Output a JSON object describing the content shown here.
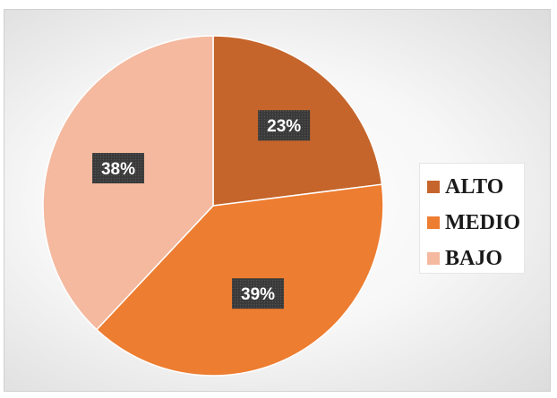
{
  "chart_data": {
    "type": "pie",
    "slices": [
      {
        "label": "ALTO",
        "value": 23,
        "display": "23%",
        "color": "#c5652b"
      },
      {
        "label": "MEDIO",
        "value": 39,
        "display": "39%",
        "color": "#ed7d31"
      },
      {
        "label": "BAJO",
        "value": 38,
        "display": "38%",
        "color": "#f4b99f"
      }
    ],
    "legend_position": "right",
    "start_angle": "12 o'clock",
    "direction": "clockwise",
    "data_label_style": {
      "background": "#3a3a3a",
      "text_color": "#ffffff"
    }
  }
}
